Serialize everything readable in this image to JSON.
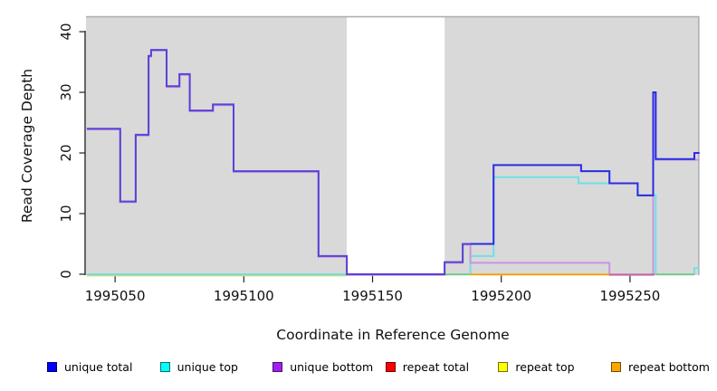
{
  "chart_data": {
    "type": "step-line",
    "title": "",
    "xlabel": "Coordinate in Reference Genome",
    "ylabel": "Read Coverage Depth",
    "xlim": [
      1995038.7,
      1995276.9
    ],
    "ylim": [
      0,
      42.7
    ],
    "x_ticks": [
      1995050,
      1995100,
      1995150,
      1995200,
      1995250
    ],
    "y_ticks": [
      0,
      10,
      20,
      30,
      40
    ],
    "grid": false,
    "plot_background": "#d9d9d9",
    "plot_border_color": "#ababab",
    "masked_region": {
      "from": 1995140,
      "to": 1995178,
      "color": "#ffffff"
    },
    "series": [
      {
        "name": "unique total",
        "color": "#0000ff",
        "steps": [
          [
            1995039,
            24
          ],
          [
            1995052,
            12
          ],
          [
            1995058,
            23
          ],
          [
            1995063,
            36
          ],
          [
            1995064,
            37
          ],
          [
            1995070,
            31
          ],
          [
            1995075,
            33
          ],
          [
            1995079,
            27
          ],
          [
            1995088,
            28
          ],
          [
            1995096,
            17
          ],
          [
            1995129,
            3
          ],
          [
            1995140,
            0
          ],
          [
            1995178,
            2
          ],
          [
            1995185,
            5
          ],
          [
            1995197,
            18
          ],
          [
            1995231,
            17
          ],
          [
            1995242,
            15
          ],
          [
            1995253,
            13
          ],
          [
            1995259,
            30
          ],
          [
            1995260,
            19
          ],
          [
            1995275,
            20
          ]
        ],
        "end": 1995277
      },
      {
        "name": "unique top",
        "color": "#00ffff",
        "steps": [
          [
            1995039,
            0
          ],
          [
            1995188,
            3
          ],
          [
            1995197,
            16
          ],
          [
            1995230,
            15
          ],
          [
            1995253,
            13
          ],
          [
            1995260,
            0
          ],
          [
            1995275,
            1
          ]
        ],
        "end": 1995277
      },
      {
        "name": "unique bottom",
        "color": "#a020f0",
        "steps": [
          [
            1995039,
            24
          ],
          [
            1995052,
            12
          ],
          [
            1995058,
            23
          ],
          [
            1995063,
            36
          ],
          [
            1995064,
            37
          ],
          [
            1995070,
            31
          ],
          [
            1995075,
            33
          ],
          [
            1995079,
            27
          ],
          [
            1995088,
            28
          ],
          [
            1995096,
            17
          ],
          [
            1995129,
            3
          ],
          [
            1995140,
            0
          ],
          [
            1995178,
            2
          ],
          [
            1995185,
            5
          ],
          [
            1995188,
            2
          ],
          [
            1995242,
            0
          ],
          [
            1995259,
            30
          ],
          [
            1995260,
            19
          ]
        ],
        "end": 1995277
      },
      {
        "name": "repeat total",
        "color": "#ff0000",
        "steps": [
          [
            1995039,
            0
          ]
        ],
        "end": 1995277
      },
      {
        "name": "repeat top",
        "color": "#ffff00",
        "steps": [
          [
            1995039,
            0
          ]
        ],
        "end": 1995277
      },
      {
        "name": "repeat bottom",
        "color": "#ffa500",
        "steps": [
          [
            1995039,
            0
          ]
        ],
        "end": 1995277
      }
    ],
    "render_layers": [
      {
        "kind": "hseg",
        "name": "repeat-top-zero-left",
        "y": 0,
        "x1": 1995039,
        "x2": 1995140,
        "color": "#e0e068",
        "dy": 1.5
      },
      {
        "kind": "hseg",
        "name": "zero-line-left",
        "y": 0,
        "x1": 1995039,
        "x2": 1995140,
        "color": "#7cc87e",
        "dy": 0.3
      },
      {
        "kind": "steps",
        "series": "unique top",
        "color": "#70dfe8",
        "dy": 0
      },
      {
        "kind": "steps",
        "series": "unique bottom",
        "color": "#c795e0",
        "dy": 0.8
      },
      {
        "kind": "hseg",
        "name": "zero-line-mid",
        "y": 0,
        "x1": 1995178,
        "x2": 1995188,
        "color": "#7cc87e",
        "dy": 0.3
      },
      {
        "kind": "hseg",
        "name": "repeat-bottom-zero",
        "y": 0,
        "x1": 1995188,
        "x2": 1995242,
        "color": "#ff9d00",
        "dy": 0.3
      },
      {
        "kind": "hseg",
        "name": "zero-line-rose",
        "y": 0,
        "x1": 1995242,
        "x2": 1995259.6,
        "color": "#c4679b",
        "dy": 0.3
      },
      {
        "kind": "hseg",
        "name": "zero-line-right",
        "y": 0,
        "x1": 1995260,
        "x2": 1995275,
        "color": "#7cc87e",
        "dy": 0.3
      },
      {
        "kind": "steps",
        "series": "unique total",
        "color_split": {
          "x": 1995188,
          "left": "#5a41d6",
          "right": "#2b2be2"
        },
        "dy": 0
      }
    ],
    "legend": [
      {
        "label": "unique total",
        "color": "#0000ff"
      },
      {
        "label": "unique top",
        "color": "#00ffff"
      },
      {
        "label": "unique bottom",
        "color": "#a020f0"
      },
      {
        "label": "repeat total",
        "color": "#ff0000"
      },
      {
        "label": "repeat top",
        "color": "#ffff00"
      },
      {
        "label": "repeat bottom",
        "color": "#ffa500"
      }
    ]
  }
}
